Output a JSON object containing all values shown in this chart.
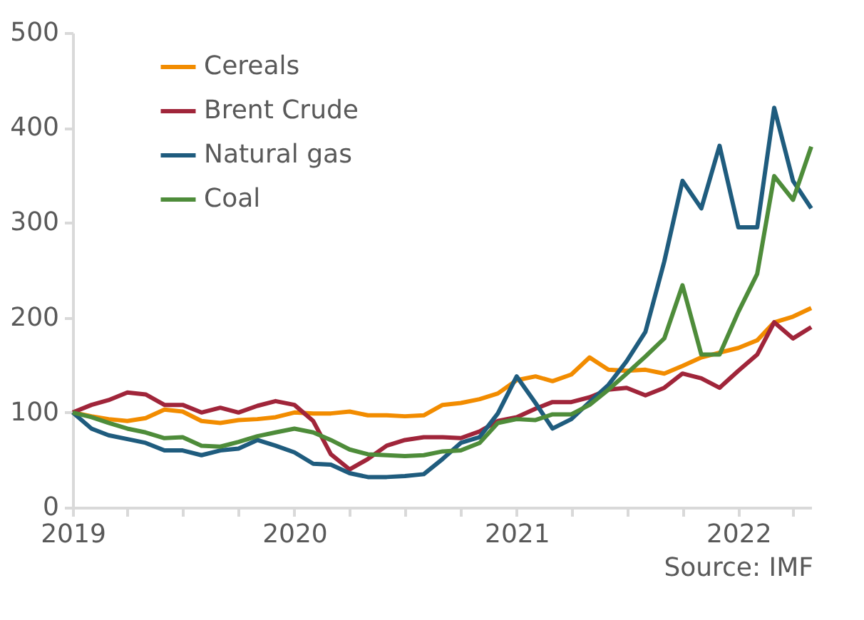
{
  "chart_data": {
    "type": "line",
    "annotations": [
      "Source: IMF"
    ],
    "x": [
      "2019-01",
      "2019-02",
      "2019-03",
      "2019-04",
      "2019-05",
      "2019-06",
      "2019-07",
      "2019-08",
      "2019-09",
      "2019-10",
      "2019-11",
      "2019-12",
      "2020-01",
      "2020-02",
      "2020-03",
      "2020-04",
      "2020-05",
      "2020-06",
      "2020-07",
      "2020-08",
      "2020-09",
      "2020-10",
      "2020-11",
      "2020-12",
      "2021-01",
      "2021-02",
      "2021-03",
      "2021-04",
      "2021-05",
      "2021-06",
      "2021-07",
      "2021-08",
      "2021-09",
      "2021-10",
      "2021-11",
      "2021-12",
      "2022-01",
      "2022-02",
      "2022-03",
      "2022-04",
      "2022-05"
    ],
    "series": [
      {
        "name": "Cereals",
        "color": "#f28c00",
        "values": [
          100,
          96,
          93,
          91,
          94,
          103,
          101,
          91,
          89,
          92,
          93,
          95,
          100,
          99,
          99,
          101,
          97,
          97,
          96,
          97,
          108,
          110,
          114,
          120,
          134,
          138,
          133,
          140,
          158,
          145,
          144,
          145,
          141,
          149,
          158,
          163,
          168,
          176,
          195,
          201,
          210
        ]
      },
      {
        "name": "Brent Crude",
        "color": "#a0253a",
        "values": [
          100,
          108,
          113,
          121,
          119,
          108,
          108,
          100,
          105,
          100,
          107,
          112,
          108,
          91,
          56,
          40,
          51,
          65,
          71,
          74,
          74,
          73,
          80,
          91,
          95,
          104,
          111,
          111,
          116,
          124,
          126,
          118,
          126,
          141,
          136,
          126,
          144,
          161,
          195,
          178,
          190
        ]
      },
      {
        "name": "Natural gas",
        "color": "#1f5c7e",
        "values": [
          100,
          83,
          76,
          72,
          68,
          60,
          60,
          55,
          60,
          62,
          71,
          65,
          58,
          46,
          45,
          36,
          32,
          32,
          33,
          35,
          51,
          68,
          74,
          99,
          138,
          110,
          83,
          93,
          111,
          129,
          154,
          185,
          259,
          344,
          315,
          381,
          295,
          295,
          421,
          344,
          315
        ]
      },
      {
        "name": "Coal",
        "color": "#4e8c3a",
        "values": [
          100,
          95,
          89,
          83,
          79,
          73,
          74,
          65,
          64,
          69,
          75,
          79,
          83,
          79,
          71,
          61,
          56,
          55,
          54,
          55,
          59,
          60,
          68,
          89,
          93,
          92,
          98,
          98,
          108,
          124,
          141,
          159,
          178,
          234,
          161,
          161,
          206,
          246,
          349,
          324,
          380
        ]
      }
    ],
    "xlim": [
      "2019-01",
      "2022-05"
    ],
    "xticks": [
      {
        "value": "2019-01",
        "label": "2019"
      },
      {
        "value": "2019-04",
        "label": null
      },
      {
        "value": "2019-07",
        "label": null
      },
      {
        "value": "2019-10",
        "label": null
      },
      {
        "value": "2020-01",
        "label": "2020"
      },
      {
        "value": "2020-04",
        "label": null
      },
      {
        "value": "2020-07",
        "label": null
      },
      {
        "value": "2020-10",
        "label": null
      },
      {
        "value": "2021-01",
        "label": "2021"
      },
      {
        "value": "2021-04",
        "label": null
      },
      {
        "value": "2021-07",
        "label": null
      },
      {
        "value": "2021-10",
        "label": null
      },
      {
        "value": "2022-01",
        "label": "2022"
      },
      {
        "value": "2022-04",
        "label": null
      }
    ],
    "ylim": [
      0,
      500
    ],
    "yticks": [
      0,
      100,
      200,
      300,
      400,
      500
    ],
    "grid": false,
    "legend": "top left",
    "marker": "none",
    "line_style": "solid"
  }
}
